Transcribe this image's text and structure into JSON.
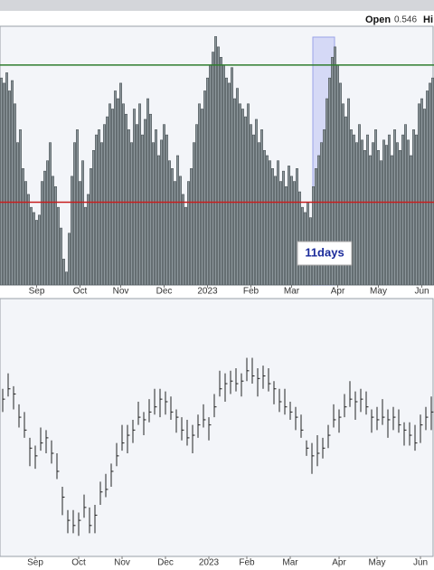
{
  "header": {
    "label": "Open",
    "value": "0.546",
    "next": "Hi"
  },
  "chart_data": [
    {
      "type": "bar",
      "annotation": "11days",
      "color": "#8d979c",
      "ylim": [
        0,
        100
      ],
      "hlines": [
        {
          "value": 85,
          "color": "#2f7d2f"
        },
        {
          "value": 32,
          "color": "#c81e1e"
        }
      ],
      "xticks": [
        {
          "value": 13,
          "label": "Sep"
        },
        {
          "value": 29,
          "label": "Oct"
        },
        {
          "value": 44,
          "label": "Nov"
        },
        {
          "value": 60,
          "label": "Dec"
        },
        {
          "value": 76,
          "label": "2023"
        },
        {
          "value": 92,
          "label": "Feb"
        },
        {
          "value": 107,
          "label": "Mar"
        },
        {
          "value": 124,
          "label": "Apr"
        },
        {
          "value": 139,
          "label": "May"
        },
        {
          "value": 155,
          "label": "Jun"
        }
      ],
      "values": [
        80,
        78,
        82,
        75,
        79,
        70,
        55,
        60,
        45,
        40,
        35,
        30,
        28,
        25,
        27,
        40,
        44,
        48,
        55,
        42,
        38,
        30,
        22,
        10,
        5,
        20,
        42,
        55,
        60,
        40,
        48,
        30,
        35,
        45,
        52,
        58,
        60,
        55,
        62,
        65,
        70,
        68,
        75,
        72,
        78,
        70,
        66,
        60,
        55,
        68,
        62,
        70,
        58,
        64,
        72,
        66,
        55,
        60,
        50,
        56,
        62,
        58,
        48,
        45,
        40,
        50,
        42,
        35,
        30,
        40,
        45,
        55,
        62,
        70,
        68,
        75,
        80,
        85,
        90,
        96,
        92,
        88,
        85,
        80,
        78,
        84,
        72,
        76,
        70,
        68,
        65,
        70,
        62,
        58,
        64,
        55,
        60,
        52,
        50,
        48,
        45,
        42,
        48,
        40,
        44,
        38,
        46,
        42,
        40,
        45,
        36,
        30,
        28,
        32,
        26,
        38,
        45,
        50,
        55,
        60,
        72,
        80,
        88,
        92,
        85,
        78,
        70,
        65,
        72,
        60,
        58,
        55,
        62,
        56,
        52,
        58,
        50,
        55,
        60,
        52,
        48,
        56,
        54,
        58,
        50,
        60,
        55,
        52,
        58,
        62,
        56,
        50,
        60,
        58,
        70,
        72,
        68,
        75,
        78,
        80
      ]
    },
    {
      "type": "ohlc",
      "color": "#222222",
      "ylim": [
        0,
        100
      ],
      "xticks": [
        {
          "value": 6,
          "label": "Sep"
        },
        {
          "value": 14,
          "label": "Oct"
        },
        {
          "value": 22,
          "label": "Nov"
        },
        {
          "value": 30,
          "label": "Dec"
        },
        {
          "value": 38,
          "label": "2023"
        },
        {
          "value": 45,
          "label": "Feb"
        },
        {
          "value": 53,
          "label": "Mar"
        },
        {
          "value": 62,
          "label": "Apr"
        },
        {
          "value": 69,
          "label": "May"
        },
        {
          "value": 77,
          "label": "Jun"
        }
      ],
      "high": [
        65,
        71,
        66,
        59,
        56,
        46,
        43,
        50,
        49,
        45,
        40,
        27,
        18,
        18,
        17,
        24,
        19,
        20,
        29,
        32,
        36,
        44,
        51,
        51,
        53,
        60,
        56,
        61,
        65,
        65,
        64,
        62,
        57,
        54,
        53,
        51,
        55,
        59,
        54,
        63,
        72,
        71,
        72,
        73,
        71,
        77,
        77,
        73,
        74,
        73,
        68,
        65,
        65,
        60,
        58,
        55,
        45,
        44,
        47,
        46,
        51,
        59,
        57,
        63,
        68,
        64,
        65,
        64,
        57,
        58,
        61,
        57,
        58,
        57,
        52,
        52,
        51,
        55,
        58,
        62
      ],
      "low": [
        56,
        62,
        57,
        50,
        46,
        35,
        34,
        41,
        40,
        36,
        30,
        16,
        9,
        9,
        8,
        15,
        9,
        9,
        20,
        23,
        27,
        35,
        41,
        40,
        44,
        51,
        47,
        52,
        55,
        54,
        55,
        53,
        48,
        45,
        43,
        40,
        46,
        50,
        45,
        54,
        62,
        60,
        63,
        64,
        62,
        68,
        67,
        62,
        65,
        64,
        59,
        56,
        55,
        53,
        49,
        46,
        39,
        32,
        35,
        38,
        42,
        50,
        48,
        54,
        58,
        53,
        56,
        55,
        48,
        49,
        51,
        46,
        49,
        48,
        43,
        43,
        41,
        44,
        49,
        49
      ],
      "close": [
        61,
        65,
        63,
        54,
        49,
        42,
        39,
        44,
        46,
        40,
        33,
        23,
        14,
        12,
        14,
        19,
        12,
        16,
        25,
        26,
        33,
        39,
        44,
        47,
        49,
        54,
        53,
        56,
        58,
        61,
        60,
        56,
        54,
        49,
        46,
        47,
        51,
        53,
        51,
        58,
        65,
        67,
        68,
        67,
        68,
        72,
        70,
        69,
        70,
        67,
        65,
        60,
        58,
        56,
        54,
        49,
        42,
        39,
        40,
        42,
        47,
        53,
        54,
        58,
        61,
        60,
        61,
        58,
        54,
        53,
        54,
        53,
        54,
        51,
        49,
        47,
        44,
        51,
        54,
        56
      ]
    }
  ]
}
